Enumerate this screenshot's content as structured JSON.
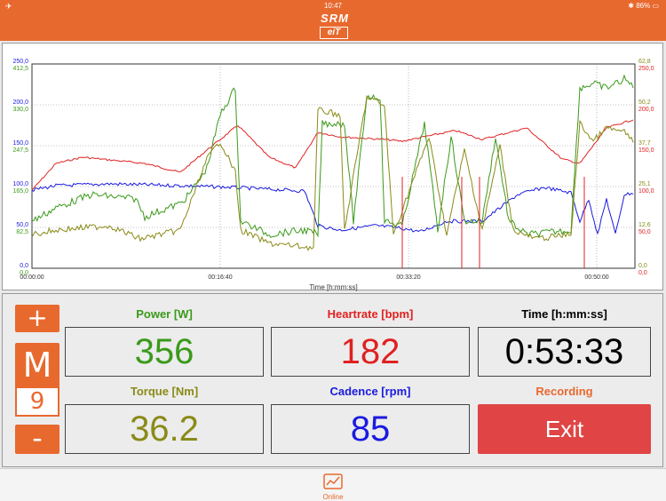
{
  "status_bar": {
    "time": "10:47",
    "battery": "86%",
    "left_icon": "airplane-icon",
    "right_icons": [
      "bluetooth-icon",
      "battery-icon"
    ]
  },
  "header": {
    "logo_top": "SRM",
    "logo_bottom": "eiT",
    "color": "#e8692e"
  },
  "chart_data": {
    "type": "line",
    "xlabel": "Time [h:mm:ss]",
    "x_ticks": [
      "00:00:00",
      "00:16:40",
      "00:33:20",
      "00:50:00"
    ],
    "left_axis_blue_ticks": [
      "0,0",
      "50,0",
      "100,0",
      "150,0",
      "200,0",
      "250,0"
    ],
    "left_axis_green_ticks": [
      "0,0",
      "82,5",
      "165,0",
      "247,5",
      "330,0",
      "412,5"
    ],
    "right_axis_olive_ticks": [
      "0,0",
      "12,6",
      "25,1",
      "37,7",
      "50,2",
      "62,8"
    ],
    "right_axis_red_ticks": [
      "0,0",
      "50,0",
      "100,0",
      "150,0",
      "200,0",
      "250,0"
    ],
    "series": [
      {
        "name": "Power [W]",
        "color": "#3a9a1a"
      },
      {
        "name": "Heartrate [bpm]",
        "color": "#e02020"
      },
      {
        "name": "Torque [Nm]",
        "color": "#8a8a18"
      },
      {
        "name": "Cadence [rpm]",
        "color": "#1a1ae0"
      }
    ]
  },
  "controls": {
    "plus": "+",
    "mode": "M",
    "mode_value": "9",
    "minus": "-"
  },
  "metrics": {
    "power": {
      "label": "Power [W]",
      "value": "356",
      "color": "#3a9a1a"
    },
    "heartrate": {
      "label": "Heartrate [bpm]",
      "value": "182",
      "color": "#e02020"
    },
    "time": {
      "label": "Time [h:mm:ss]",
      "value": "0:53:33",
      "color": "#000000"
    },
    "torque": {
      "label": "Torque [Nm]",
      "value": "36.2",
      "color": "#8a8a18"
    },
    "cadence": {
      "label": "Cadence [rpm]",
      "value": "85",
      "color": "#1a1ae0"
    },
    "recording": {
      "label": "Recording",
      "color": "#e8692e"
    }
  },
  "exit_button": {
    "label": "Exit",
    "color": "#e04444"
  },
  "tabbar": {
    "tab_label": "Online",
    "tab_icon": "chart-icon"
  }
}
